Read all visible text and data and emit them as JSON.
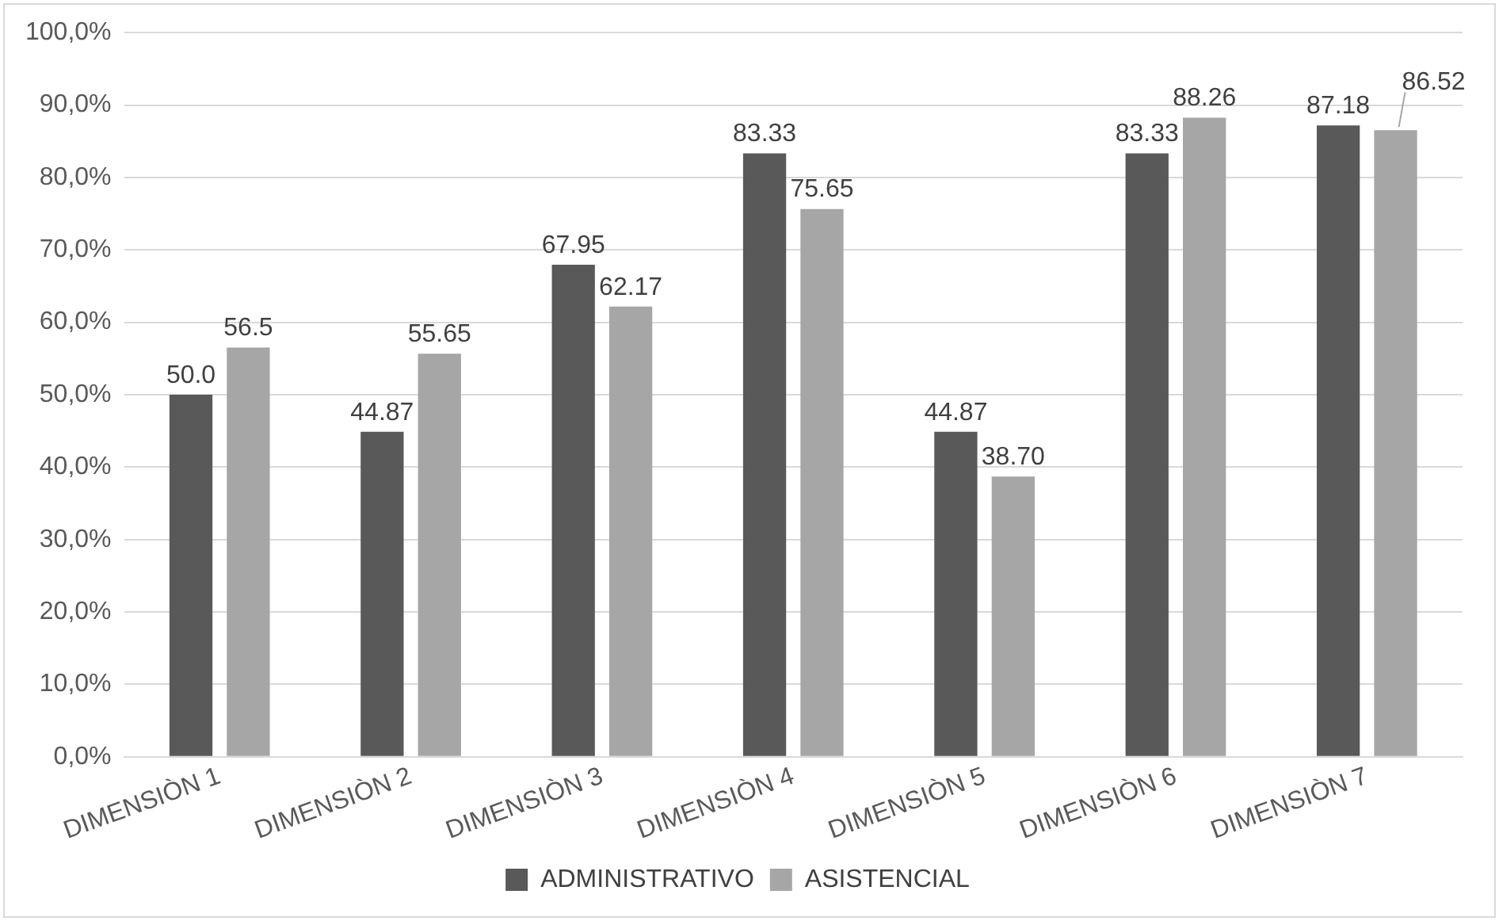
{
  "chart_data": {
    "type": "bar",
    "categories": [
      "DIMENSIÒN 1",
      "DIMENSIÒN 2",
      "DIMENSIÒN 3",
      "DIMENSIÒN 4",
      "DIMENSIÒN 5",
      "DIMENSIÒN 6",
      "DIMENSIÒN 7"
    ],
    "series": [
      {
        "name": "ADMINISTRATIVO",
        "color": "#595959",
        "values": [
          50.0,
          44.87,
          67.95,
          83.33,
          44.87,
          83.33,
          87.18
        ],
        "value_labels": [
          "50.0",
          "44.87",
          "67.95",
          "83.33",
          "44.87",
          "83.33",
          "87.18"
        ]
      },
      {
        "name": "ASISTENCIAL",
        "color": "#a6a6a6",
        "values": [
          56.5,
          55.65,
          62.17,
          75.65,
          38.7,
          88.26,
          86.52
        ],
        "value_labels": [
          "56.5",
          "55.65",
          "62.17",
          "75.65",
          "38.70",
          "88.26",
          "86.52"
        ]
      }
    ],
    "ylim": [
      0,
      100
    ],
    "yticks": [
      {
        "value": 0,
        "label": "0,0%"
      },
      {
        "value": 10,
        "label": "10,0%"
      },
      {
        "value": 20,
        "label": "20,0%"
      },
      {
        "value": 30,
        "label": "30,0%"
      },
      {
        "value": 40,
        "label": "40,0%"
      },
      {
        "value": 50,
        "label": "50,0%"
      },
      {
        "value": 60,
        "label": "60,0%"
      },
      {
        "value": 70,
        "label": "70,0%"
      },
      {
        "value": 80,
        "label": "80,0%"
      },
      {
        "value": 90,
        "label": "90,0%"
      },
      {
        "value": 100,
        "label": "100,0%"
      }
    ],
    "grid": "y",
    "legend": "bottom"
  }
}
